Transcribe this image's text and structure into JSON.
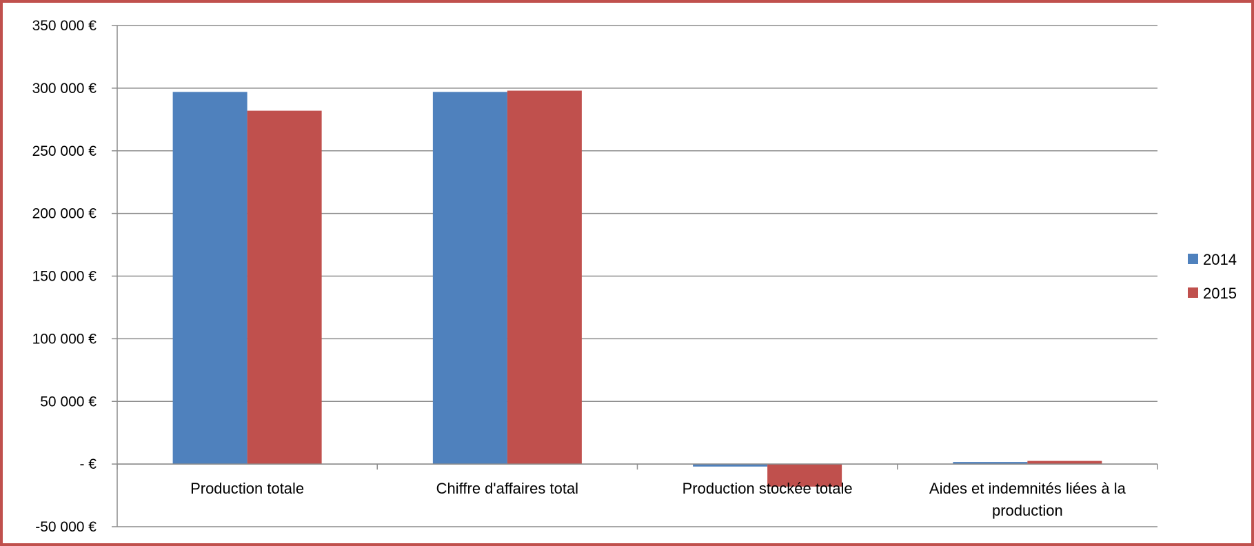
{
  "chart_data": {
    "type": "bar",
    "title": "",
    "xlabel": "",
    "ylabel": "",
    "categories": [
      [
        "Production totale"
      ],
      [
        "Chiffre d'affaires total"
      ],
      [
        "Production stockée totale"
      ],
      [
        "Aides et indemnités liées à la",
        "production"
      ]
    ],
    "series": [
      {
        "name": "2014",
        "color": "#4f81bd",
        "values": [
          297000,
          297000,
          -2000,
          1500
        ]
      },
      {
        "name": "2015",
        "color": "#c0504d",
        "values": [
          282000,
          298000,
          -18000,
          2500
        ]
      }
    ],
    "ylim": [
      -50000,
      350000
    ],
    "yticks": [
      350000,
      300000,
      250000,
      200000,
      150000,
      100000,
      50000,
      0,
      -50000
    ],
    "ytick_labels": [
      "350 000 €",
      "300 000 €",
      "250 000 €",
      "200 000 €",
      "150 000 €",
      "100 000 €",
      "50 000 €",
      "-  €",
      "-50 000 €"
    ],
    "grid": true,
    "legend": "right"
  }
}
